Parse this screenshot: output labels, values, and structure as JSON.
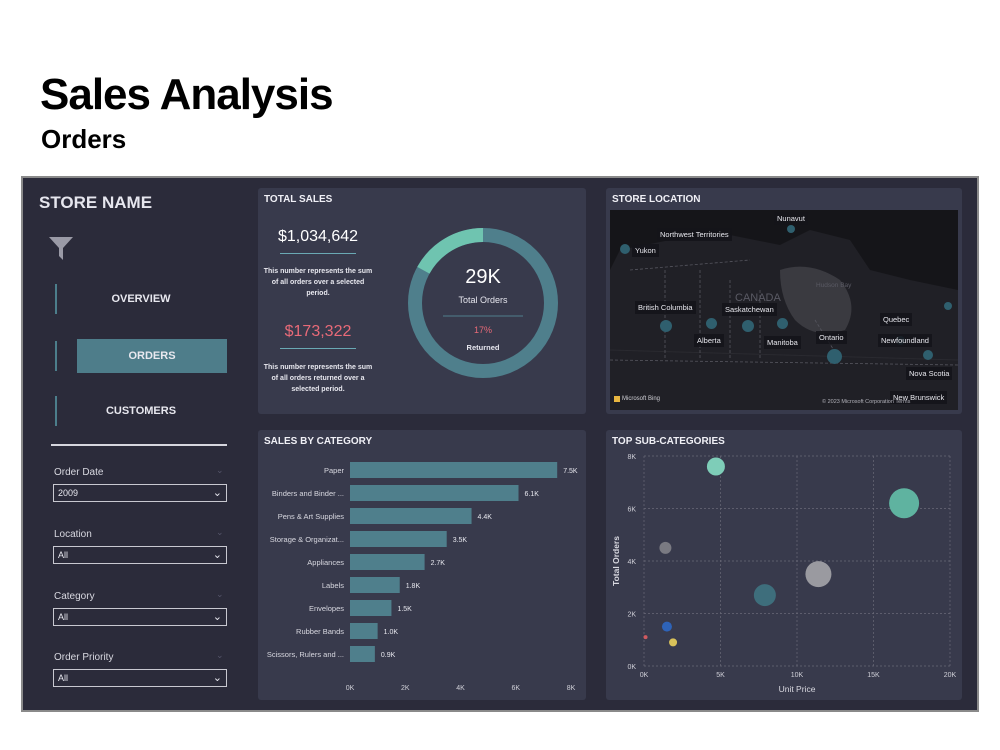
{
  "header": {
    "title": "Sales Analysis",
    "subtitle": "Orders"
  },
  "sidebar": {
    "store_name": "STORE NAME",
    "nav": [
      {
        "label": "OVERVIEW",
        "active": false
      },
      {
        "label": "ORDERS",
        "active": true
      },
      {
        "label": "CUSTOMERS",
        "active": false
      }
    ],
    "filters": [
      {
        "label": "Order Date",
        "value": "2009"
      },
      {
        "label": "Location",
        "value": "All"
      },
      {
        "label": "Category",
        "value": "All"
      },
      {
        "label": "Order Priority",
        "value": "All"
      }
    ]
  },
  "total_sales": {
    "title": "TOTAL SALES",
    "sales_value": "$1,034,642",
    "sales_note": "This number represents the sum of all orders over a selected period.",
    "returned_value": "$173,322",
    "returned_note": "This number represents the sum of all orders returned over a selected period.",
    "donut_center": "29K",
    "donut_label": "Total Orders",
    "returned_pct": "17%",
    "returned_label": "Returned",
    "returned_fraction": 0.17,
    "colors": {
      "ring": "#4f7f8c",
      "returned": "#6fc4b0",
      "sales_value": "#ffffff",
      "returned_value": "#e86a78",
      "pct": "#e86a78"
    }
  },
  "store_location": {
    "title": "STORE LOCATION",
    "country_label": "CANADA",
    "hudson_label": "Hudson Bay",
    "credit_left": "Microsoft Bing",
    "credit_right": "© 2023 Microsoft Corporation  Terms",
    "provinces": [
      "Nunavut",
      "Northwest Territories",
      "Yukon",
      "British Columbia",
      "Saskatchewan",
      "Alberta",
      "Manitoba",
      "Ontario",
      "Quebec",
      "Newfoundland",
      "Nova Scotia",
      "New Brunswick"
    ]
  },
  "sales_by_category": {
    "title": "SALES BY CATEGORY"
  },
  "top_subcategories": {
    "title": "TOP SUB-CATEGORIES"
  },
  "chart_data": [
    {
      "type": "bar",
      "orientation": "horizontal",
      "title": "SALES BY CATEGORY",
      "categories": [
        "Paper",
        "Binders and Binder ...",
        "Pens & Art Supplies",
        "Storage & Organizat...",
        "Appliances",
        "Labels",
        "Envelopes",
        "Rubber Bands",
        "Scissors, Rulers and ..."
      ],
      "values": [
        7500,
        6100,
        4400,
        3500,
        2700,
        1800,
        1500,
        1000,
        900
      ],
      "data_labels": [
        "7.5K",
        "6.1K",
        "4.4K",
        "3.5K",
        "2.7K",
        "1.8K",
        "1.5K",
        "1.0K",
        "0.9K"
      ],
      "x_ticks": [
        "0K",
        "2K",
        "4K",
        "6K",
        "8K"
      ],
      "xlim": [
        0,
        8000
      ],
      "bar_color": "#4f7f8c"
    },
    {
      "type": "scatter",
      "title": "TOP SUB-CATEGORIES",
      "xlabel": "Unit Price",
      "ylabel": "Total Orders",
      "xlim": [
        0,
        20000
      ],
      "ylim": [
        0,
        8000
      ],
      "x_ticks": [
        "0K",
        "5K",
        "10K",
        "15K",
        "20K"
      ],
      "y_ticks": [
        "0K",
        "2K",
        "4K",
        "6K",
        "8K"
      ],
      "grid": true,
      "points": [
        {
          "x": 4700,
          "y": 7600,
          "size": 9,
          "color": "#7ecdb8"
        },
        {
          "x": 17000,
          "y": 6200,
          "size": 15,
          "color": "#5fb3a0"
        },
        {
          "x": 1400,
          "y": 4500,
          "size": 6,
          "color": "#7a7a82"
        },
        {
          "x": 11400,
          "y": 3500,
          "size": 13,
          "color": "#9a9aa0"
        },
        {
          "x": 7900,
          "y": 2700,
          "size": 11,
          "color": "#3e6e7c"
        },
        {
          "x": 1500,
          "y": 1500,
          "size": 5,
          "color": "#2e63b8"
        },
        {
          "x": 1900,
          "y": 900,
          "size": 4,
          "color": "#d9c25a"
        },
        {
          "x": 100,
          "y": 1100,
          "size": 2,
          "color": "#d05a60"
        }
      ]
    }
  ]
}
